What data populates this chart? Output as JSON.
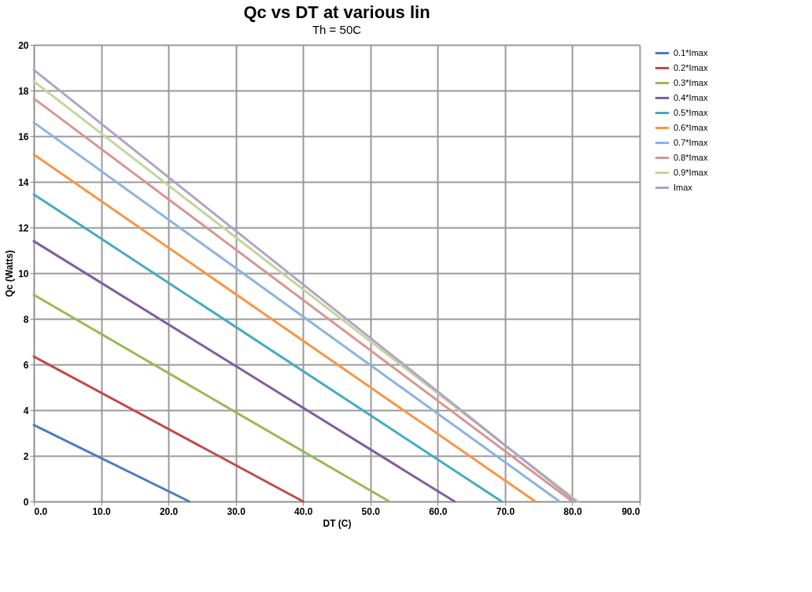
{
  "chart_data": {
    "type": "line",
    "title": "Qc vs DT at various lin",
    "subtitle": "Th = 50C",
    "xlabel": "DT (C)",
    "ylabel": "Qc (Watts)",
    "xlim": [
      0,
      90
    ],
    "xticks": [
      {
        "value": 0,
        "label": "0.0"
      },
      {
        "value": 10,
        "label": "10.0"
      },
      {
        "value": 20,
        "label": "20.0"
      },
      {
        "value": 30,
        "label": "30.0"
      },
      {
        "value": 40,
        "label": "40.0"
      },
      {
        "value": 50,
        "label": "50.0"
      },
      {
        "value": 60,
        "label": "60.0"
      },
      {
        "value": 70,
        "label": "70.0"
      },
      {
        "value": 80,
        "label": "80.0"
      },
      {
        "value": 90,
        "label": "90.0"
      }
    ],
    "ylim": [
      0,
      20
    ],
    "yticks": [
      0,
      2,
      4,
      6,
      8,
      10,
      12,
      14,
      16,
      18,
      20
    ],
    "grid": true,
    "legend": "right",
    "marker": "none",
    "line_style": "solid",
    "series": [
      {
        "name": "0.1*Imax",
        "color": "#4a7ebb",
        "x": [
          0,
          23.1
        ],
        "values": [
          3.35,
          0
        ]
      },
      {
        "name": "0.2*Imax",
        "color": "#be4b48",
        "x": [
          0,
          40.0
        ],
        "values": [
          6.35,
          0
        ]
      },
      {
        "name": "0.3*Imax",
        "color": "#98b954",
        "x": [
          0,
          52.8
        ],
        "values": [
          9.05,
          0
        ]
      },
      {
        "name": "0.4*Imax",
        "color": "#7d60a0",
        "x": [
          0,
          62.5
        ],
        "values": [
          11.4,
          0
        ]
      },
      {
        "name": "0.5*Imax",
        "color": "#46aac5",
        "x": [
          0,
          69.5
        ],
        "values": [
          13.45,
          0
        ]
      },
      {
        "name": "0.6*Imax",
        "color": "#f79646",
        "x": [
          0,
          74.5
        ],
        "values": [
          15.2,
          0
        ]
      },
      {
        "name": "0.7*Imax",
        "color": "#8cb4e2",
        "x": [
          0,
          78.1
        ],
        "values": [
          16.6,
          0
        ]
      },
      {
        "name": "0.8*Imax",
        "color": "#d99694",
        "x": [
          0,
          80.0
        ],
        "values": [
          17.65,
          0
        ]
      },
      {
        "name": "0.9*Imax",
        "color": "#c3d69b",
        "x": [
          0,
          80.8
        ],
        "values": [
          18.4,
          0
        ]
      },
      {
        "name": "Imax",
        "color": "#b3a2c7",
        "x": [
          0,
          80.5
        ],
        "values": [
          18.9,
          0
        ]
      }
    ]
  }
}
